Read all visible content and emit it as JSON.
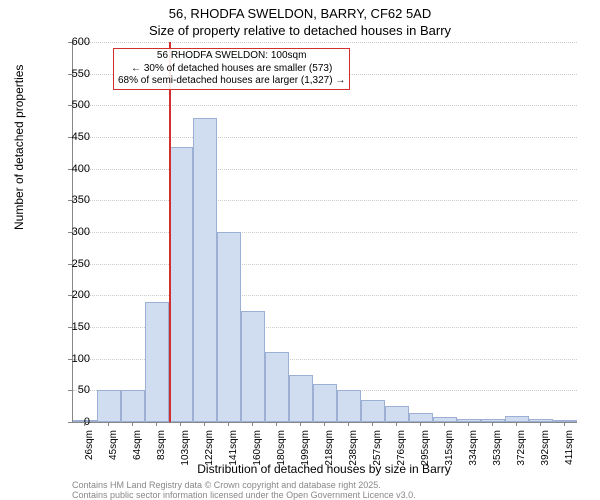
{
  "title_line1": "56, RHODFA SWELDON, BARRY, CF62 5AD",
  "title_line2": "Size of property relative to detached houses in Barry",
  "y_label": "Number of detached properties",
  "x_label": "Distribution of detached houses by size in Barry",
  "footer1": "Contains HM Land Registry data © Crown copyright and database right 2025.",
  "footer2": "Contains public sector information licensed under the Open Government Licence v3.0.",
  "chart": {
    "type": "histogram",
    "ylim": [
      0,
      600
    ],
    "ytick_step": 50,
    "background_color": "#ffffff",
    "grid_color": "#cccccc",
    "bar_fill": "#d0dcf0",
    "bar_border": "#9db0d3",
    "marker_color": "#d03030",
    "marker_bin_index": 4,
    "x_labels": [
      "26sqm",
      "45sqm",
      "64sqm",
      "83sqm",
      "103sqm",
      "122sqm",
      "141sqm",
      "160sqm",
      "180sqm",
      "199sqm",
      "218sqm",
      "238sqm",
      "257sqm",
      "276sqm",
      "295sqm",
      "315sqm",
      "334sqm",
      "353sqm",
      "372sqm",
      "392sqm",
      "411sqm"
    ],
    "values": [
      2,
      50,
      50,
      190,
      435,
      480,
      300,
      175,
      110,
      75,
      60,
      50,
      35,
      25,
      15,
      8,
      5,
      5,
      10,
      5,
      3
    ]
  },
  "annotation": {
    "line1": "56 RHODFA SWELDON: 100sqm",
    "line2": "← 30% of detached houses are smaller (573)",
    "line3": "68% of semi-detached houses are larger (1,327) →"
  }
}
